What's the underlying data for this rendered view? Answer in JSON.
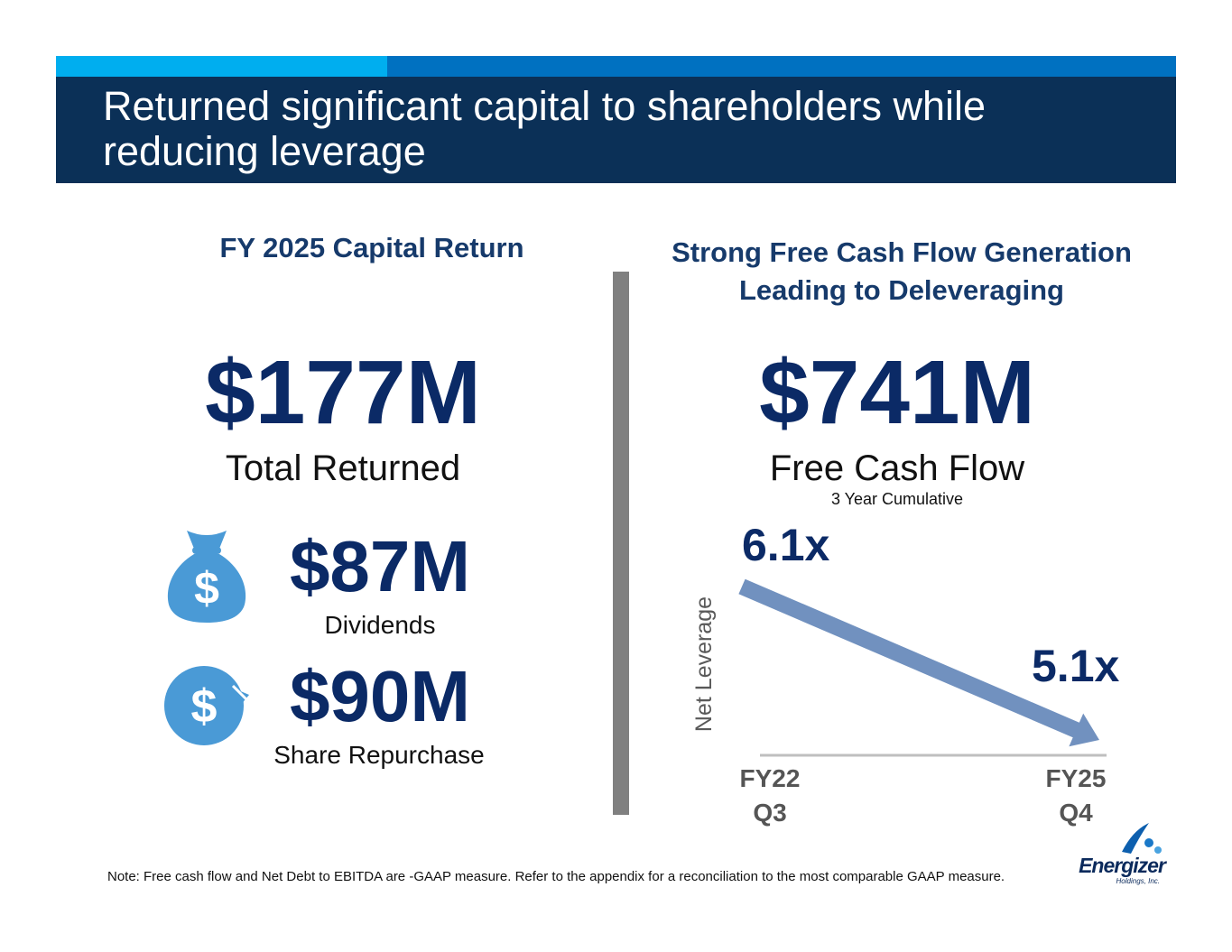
{
  "header": {
    "title": "Returned significant capital to shareholders while reducing leverage"
  },
  "left_panel": {
    "heading": "FY 2025 Capital Return",
    "total_value": "$177M",
    "total_label": "Total Returned",
    "dividends_value": "$87M",
    "dividends_label": "Dividends",
    "repurchase_value": "$90M",
    "repurchase_label": "Share Repurchase",
    "icons": [
      "money-bag-dollar-icon",
      "circular-arrow-dollar-icon"
    ]
  },
  "right_panel": {
    "heading_line1": "Strong Free Cash Flow Generation",
    "heading_line2": "Leading to Deleveraging",
    "fcf_value": "$741M",
    "fcf_label": "Free Cash Flow",
    "fcf_sublabel": "3 Year Cumulative"
  },
  "chart_data": {
    "type": "line",
    "title": "",
    "ylabel": "Net Leverage",
    "xlabel": "",
    "categories": [
      "FY22 Q3",
      "FY25 Q4"
    ],
    "category_lines": [
      [
        "FY22",
        "Q3"
      ],
      [
        "FY25",
        "Q4"
      ]
    ],
    "values": [
      6.1,
      5.1
    ],
    "data_labels": [
      "6.1x",
      "5.1x"
    ],
    "arrow_color": "#7191bf",
    "axis_color": "#bfbfbf"
  },
  "footer": {
    "note": "Note: Free cash flow and Net Debt to EBITDA are -GAAP measure. Refer to the appendix for a reconciliation to the most comparable GAAP measure.",
    "logo_text": "Energizer",
    "logo_subtext": "Holdings, Inc."
  },
  "colors": {
    "banner": "#0b3057",
    "accent_light": "#00aeef",
    "accent_dark": "#0071c1",
    "navy_text": "#0b2a66",
    "icon_blue": "#4a9ad6",
    "divider": "#808080"
  }
}
